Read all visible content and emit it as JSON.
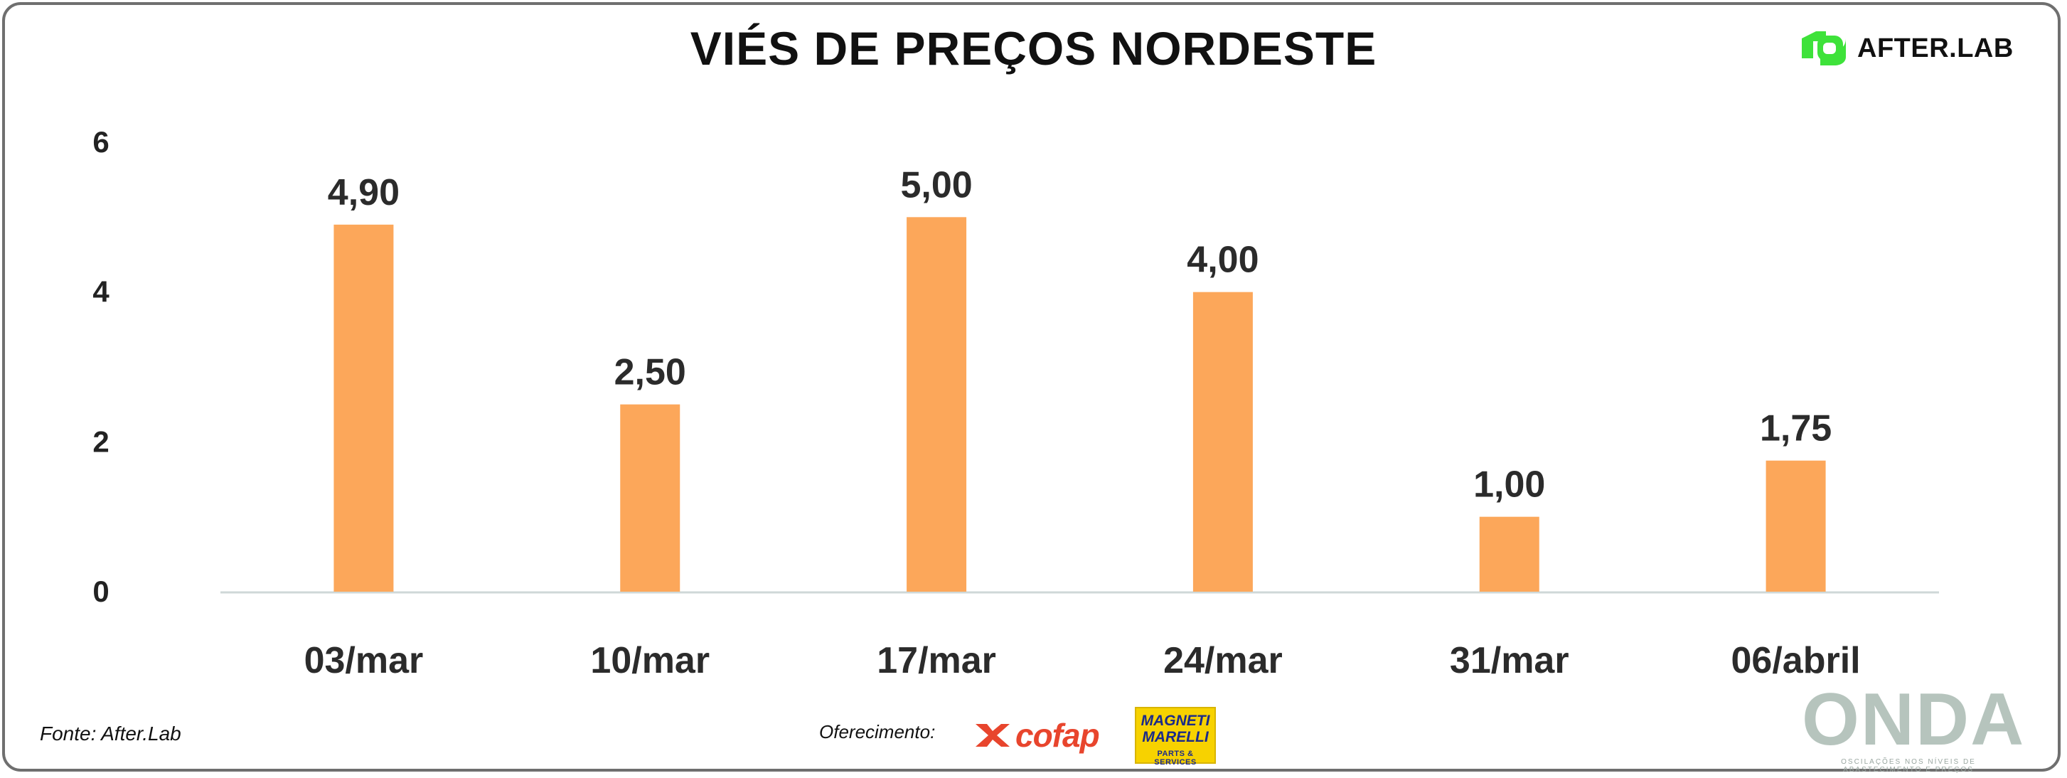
{
  "title": "VIÉS DE PREÇOS NORDESTE",
  "brand": {
    "name": "AFTER.LAB",
    "color": "#3ee23a"
  },
  "chart_data": {
    "type": "bar",
    "title": "VIÉS DE PREÇOS NORDESTE",
    "categories": [
      "03/mar",
      "10/mar",
      "17/mar",
      "24/mar",
      "31/mar",
      "06/abril"
    ],
    "values": [
      4.9,
      2.5,
      5.0,
      4.0,
      1.0,
      1.75
    ],
    "data_labels": [
      "4,90",
      "2,50",
      "5,00",
      "4,00",
      "1,00",
      "1,75"
    ],
    "yticks": [
      "0",
      "2",
      "4",
      "6"
    ],
    "ylim": [
      0,
      6
    ],
    "xlabel": "",
    "ylabel": "",
    "grid": false,
    "bar_color": "#fca75a",
    "axis_color": "#cfd8d8"
  },
  "footer": {
    "source": "Fonte: After.Lab",
    "offer_label": "Oferecimento:",
    "sponsor1": "cofap",
    "sponsor2_top": "MAGNETI MARELLI",
    "sponsor2_bottom": "PARTS & SERVICES",
    "onda": "ONDA",
    "onda_tagline": "OSCILAÇÕES NOS NÍVEIS DE ABASTECIMENTO E PREÇOS"
  }
}
